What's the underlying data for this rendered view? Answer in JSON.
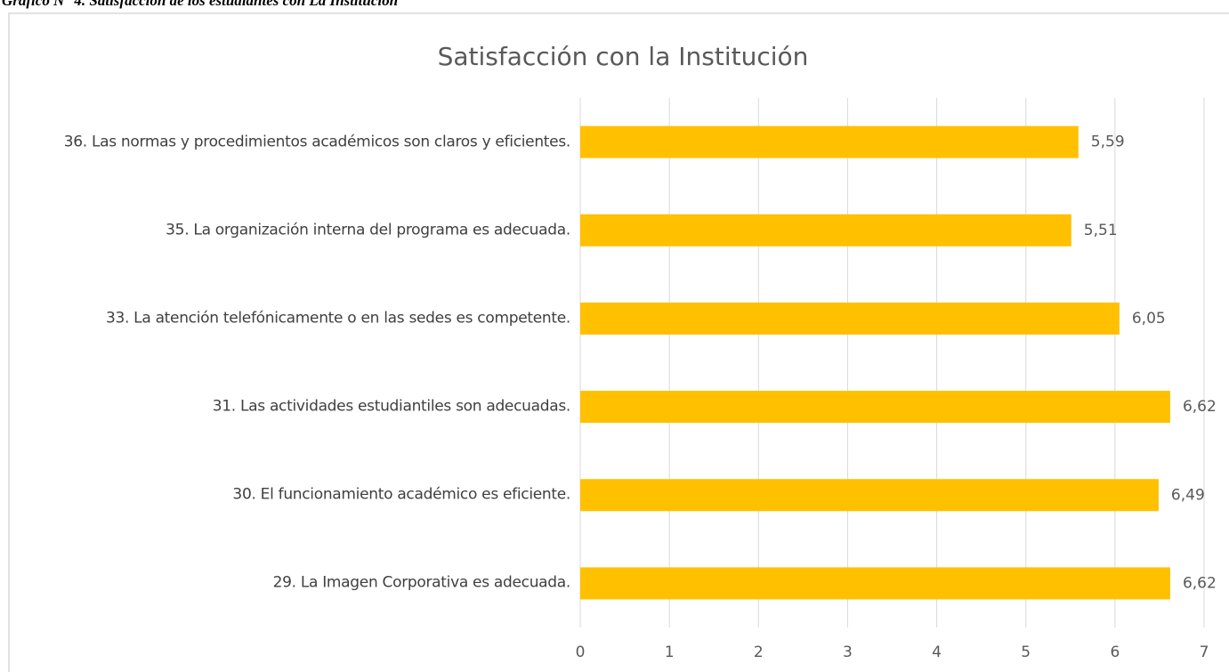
{
  "caption": "Gráfico N° 4. Satisfacción de los estudiantes con La Institución",
  "chart_data": {
    "type": "bar",
    "orientation": "horizontal",
    "title": "Satisfacción con la Institución",
    "categories": [
      "36. Las normas y procedimientos académicos son claros y eficientes.",
      "35. La organización interna del programa es adecuada.",
      "33. La atención telefónicamente o en las sedes es competente.",
      "31. Las actividades estudiantiles son adecuadas.",
      "30. El funcionamiento académico es eficiente.",
      "29. La Imagen Corporativa es adecuada."
    ],
    "values": [
      5.59,
      5.51,
      6.05,
      6.62,
      6.49,
      6.62
    ],
    "value_labels": [
      "5,59",
      "5,51",
      "6,05",
      "6,62",
      "6,49",
      "6,62"
    ],
    "color": "#ffc000",
    "xlim": [
      0,
      7
    ],
    "xticks": [
      0,
      1,
      2,
      3,
      4,
      5,
      6,
      7
    ],
    "grid": true
  }
}
